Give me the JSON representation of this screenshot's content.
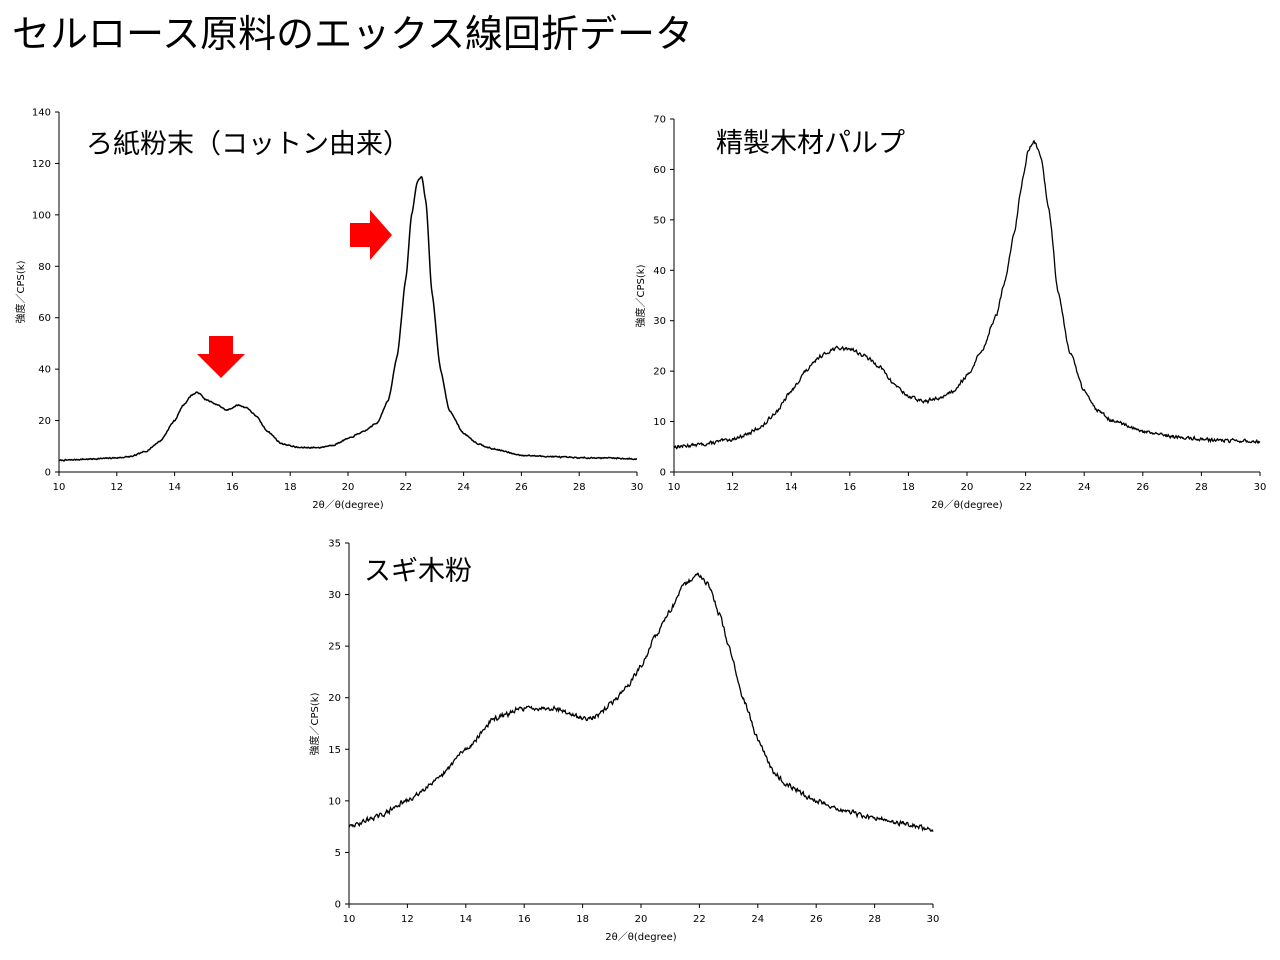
{
  "slide": {
    "title": "セルロース原料のエックス線回折データ"
  },
  "charts": {
    "filter_paper": {
      "title": "ろ紙粉末（コットン由来）",
      "xlabel": "2θ／θ(degree)",
      "ylabel": "強度／CPS(k)"
    },
    "pulp": {
      "title": "精製木材パルプ",
      "xlabel": "2θ／θ(degree)",
      "ylabel": "強度／CPS(k)"
    },
    "cedar": {
      "title": "スギ木粉",
      "xlabel": "2θ／θ(degree)",
      "ylabel": "強度／CPS(k)"
    }
  },
  "annotation_color": "#ff0000",
  "chart_data": [
    {
      "type": "line",
      "title": "ろ紙粉末（コットン由来）",
      "xlabel": "2θ／θ(degree)",
      "ylabel": "強度／CPS(k)",
      "xlim": [
        10,
        30
      ],
      "ylim": [
        0,
        140
      ],
      "xticks": [
        10,
        12,
        14,
        16,
        18,
        20,
        22,
        24,
        26,
        28,
        30
      ],
      "yticks": [
        0,
        20,
        40,
        60,
        80,
        100,
        120,
        140
      ],
      "grid": false,
      "legend": "none",
      "noise": 0.3,
      "x": [
        10,
        11,
        12,
        12.5,
        13,
        13.5,
        14,
        14.3,
        14.6,
        14.8,
        15.1,
        15.5,
        15.8,
        16.2,
        16.5,
        16.8,
        17.2,
        17.7,
        18.3,
        19,
        19.5,
        20,
        20.5,
        21,
        21.4,
        21.7,
        22,
        22.2,
        22.4,
        22.55,
        22.7,
        22.9,
        23.2,
        23.5,
        24,
        24.5,
        25,
        26,
        27,
        28,
        29,
        30
      ],
      "y": [
        4.5,
        5,
        5.5,
        6,
        8,
        12,
        20,
        26,
        30,
        31,
        28,
        26,
        24,
        26,
        25,
        22,
        16,
        11,
        9.5,
        9.5,
        10.5,
        13,
        15.5,
        19,
        28,
        45,
        75,
        100,
        113,
        115,
        105,
        70,
        40,
        24,
        15,
        11,
        9,
        6.5,
        6,
        5.5,
        5.5,
        5
      ]
    },
    {
      "type": "line",
      "title": "精製木材パルプ",
      "xlabel": "2θ／θ(degree)",
      "ylabel": "強度／CPS(k)",
      "xlim": [
        10,
        30
      ],
      "ylim": [
        0,
        70
      ],
      "xticks": [
        10,
        12,
        14,
        16,
        18,
        20,
        22,
        24,
        26,
        28,
        30
      ],
      "yticks": [
        0,
        10,
        20,
        30,
        40,
        50,
        60,
        70
      ],
      "grid": false,
      "legend": "none",
      "noise": 0.45,
      "x": [
        10,
        11,
        12,
        12.5,
        13,
        13.5,
        14,
        14.5,
        15,
        15.5,
        16,
        16.5,
        17,
        17.5,
        18,
        18.5,
        19,
        19.5,
        20,
        20.5,
        21,
        21.3,
        21.6,
        21.9,
        22.1,
        22.3,
        22.5,
        22.8,
        23.1,
        23.5,
        24,
        24.5,
        25,
        26,
        27,
        28,
        29,
        30
      ],
      "y": [
        5,
        5.5,
        6.5,
        7.5,
        9,
        12,
        16,
        20,
        23,
        24.5,
        24.5,
        23,
        21,
        17.5,
        15,
        14,
        14.5,
        16,
        19,
        24,
        31,
        38,
        47,
        58,
        64,
        65.5,
        63,
        52,
        36,
        24,
        16,
        12,
        10,
        8,
        7,
        6.5,
        6.2,
        6
      ]
    },
    {
      "type": "line",
      "title": "スギ木粉",
      "xlabel": "2θ／θ(degree)",
      "ylabel": "強度／CPS(k)",
      "xlim": [
        10,
        30
      ],
      "ylim": [
        0,
        35
      ],
      "xticks": [
        10,
        12,
        14,
        16,
        18,
        20,
        22,
        24,
        26,
        28,
        30
      ],
      "yticks": [
        0,
        5,
        10,
        15,
        20,
        25,
        30,
        35
      ],
      "grid": false,
      "legend": "none",
      "noise": 0.28,
      "x": [
        10,
        11,
        12,
        13,
        14,
        15,
        16,
        17,
        18,
        18.5,
        19,
        19.5,
        20,
        20.5,
        21,
        21.5,
        22,
        22.3,
        22.7,
        23,
        23.5,
        24,
        24.5,
        25,
        26,
        27,
        28,
        29,
        30
      ],
      "y": [
        7.5,
        8.5,
        10,
        12,
        15,
        18,
        19,
        19,
        18,
        18.2,
        19.5,
        21,
        23,
        26,
        28.5,
        31,
        32,
        31,
        28,
        25,
        20,
        16,
        13,
        11.5,
        10,
        9,
        8.3,
        7.8,
        7.2
      ]
    }
  ]
}
